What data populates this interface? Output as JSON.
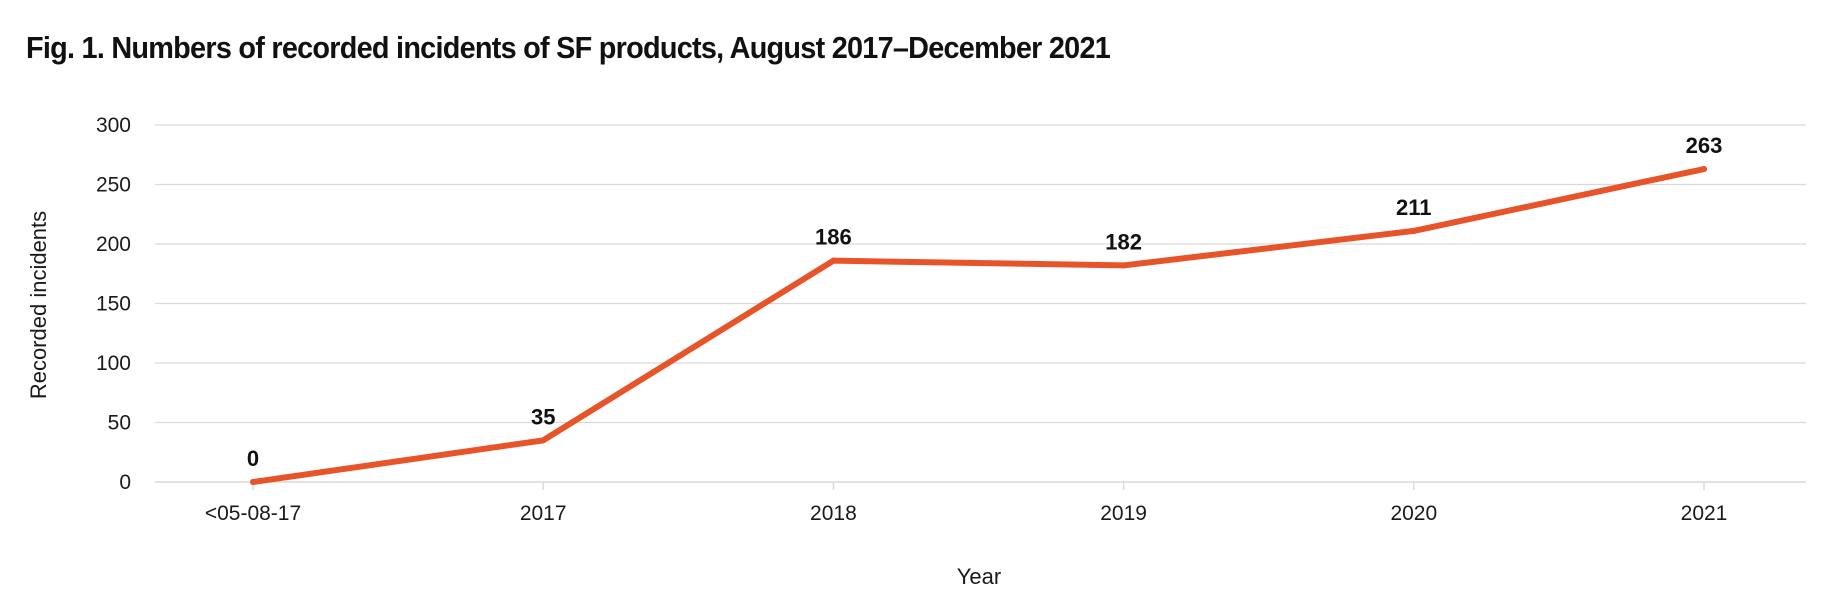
{
  "chart_data": {
    "type": "line",
    "title": "Fig. 1. Numbers of recorded incidents of SF products, August 2017–December 2021",
    "xlabel": "Year",
    "ylabel": "Recorded incidents",
    "categories": [
      "<05-08-17",
      "2017",
      "2018",
      "2019",
      "2020",
      "2021"
    ],
    "series": [
      {
        "values": [
          0,
          35,
          186,
          182,
          211,
          263
        ],
        "color": "#e8542a"
      }
    ],
    "data_labels": [
      "0",
      "35",
      "186",
      "182",
      "211",
      "263"
    ],
    "ylim": [
      0,
      300
    ],
    "yticks": [
      0,
      50,
      100,
      150,
      200,
      250,
      300
    ],
    "grid": "horizontal",
    "legend": "none",
    "gridline_color": "#d9d9d9"
  }
}
